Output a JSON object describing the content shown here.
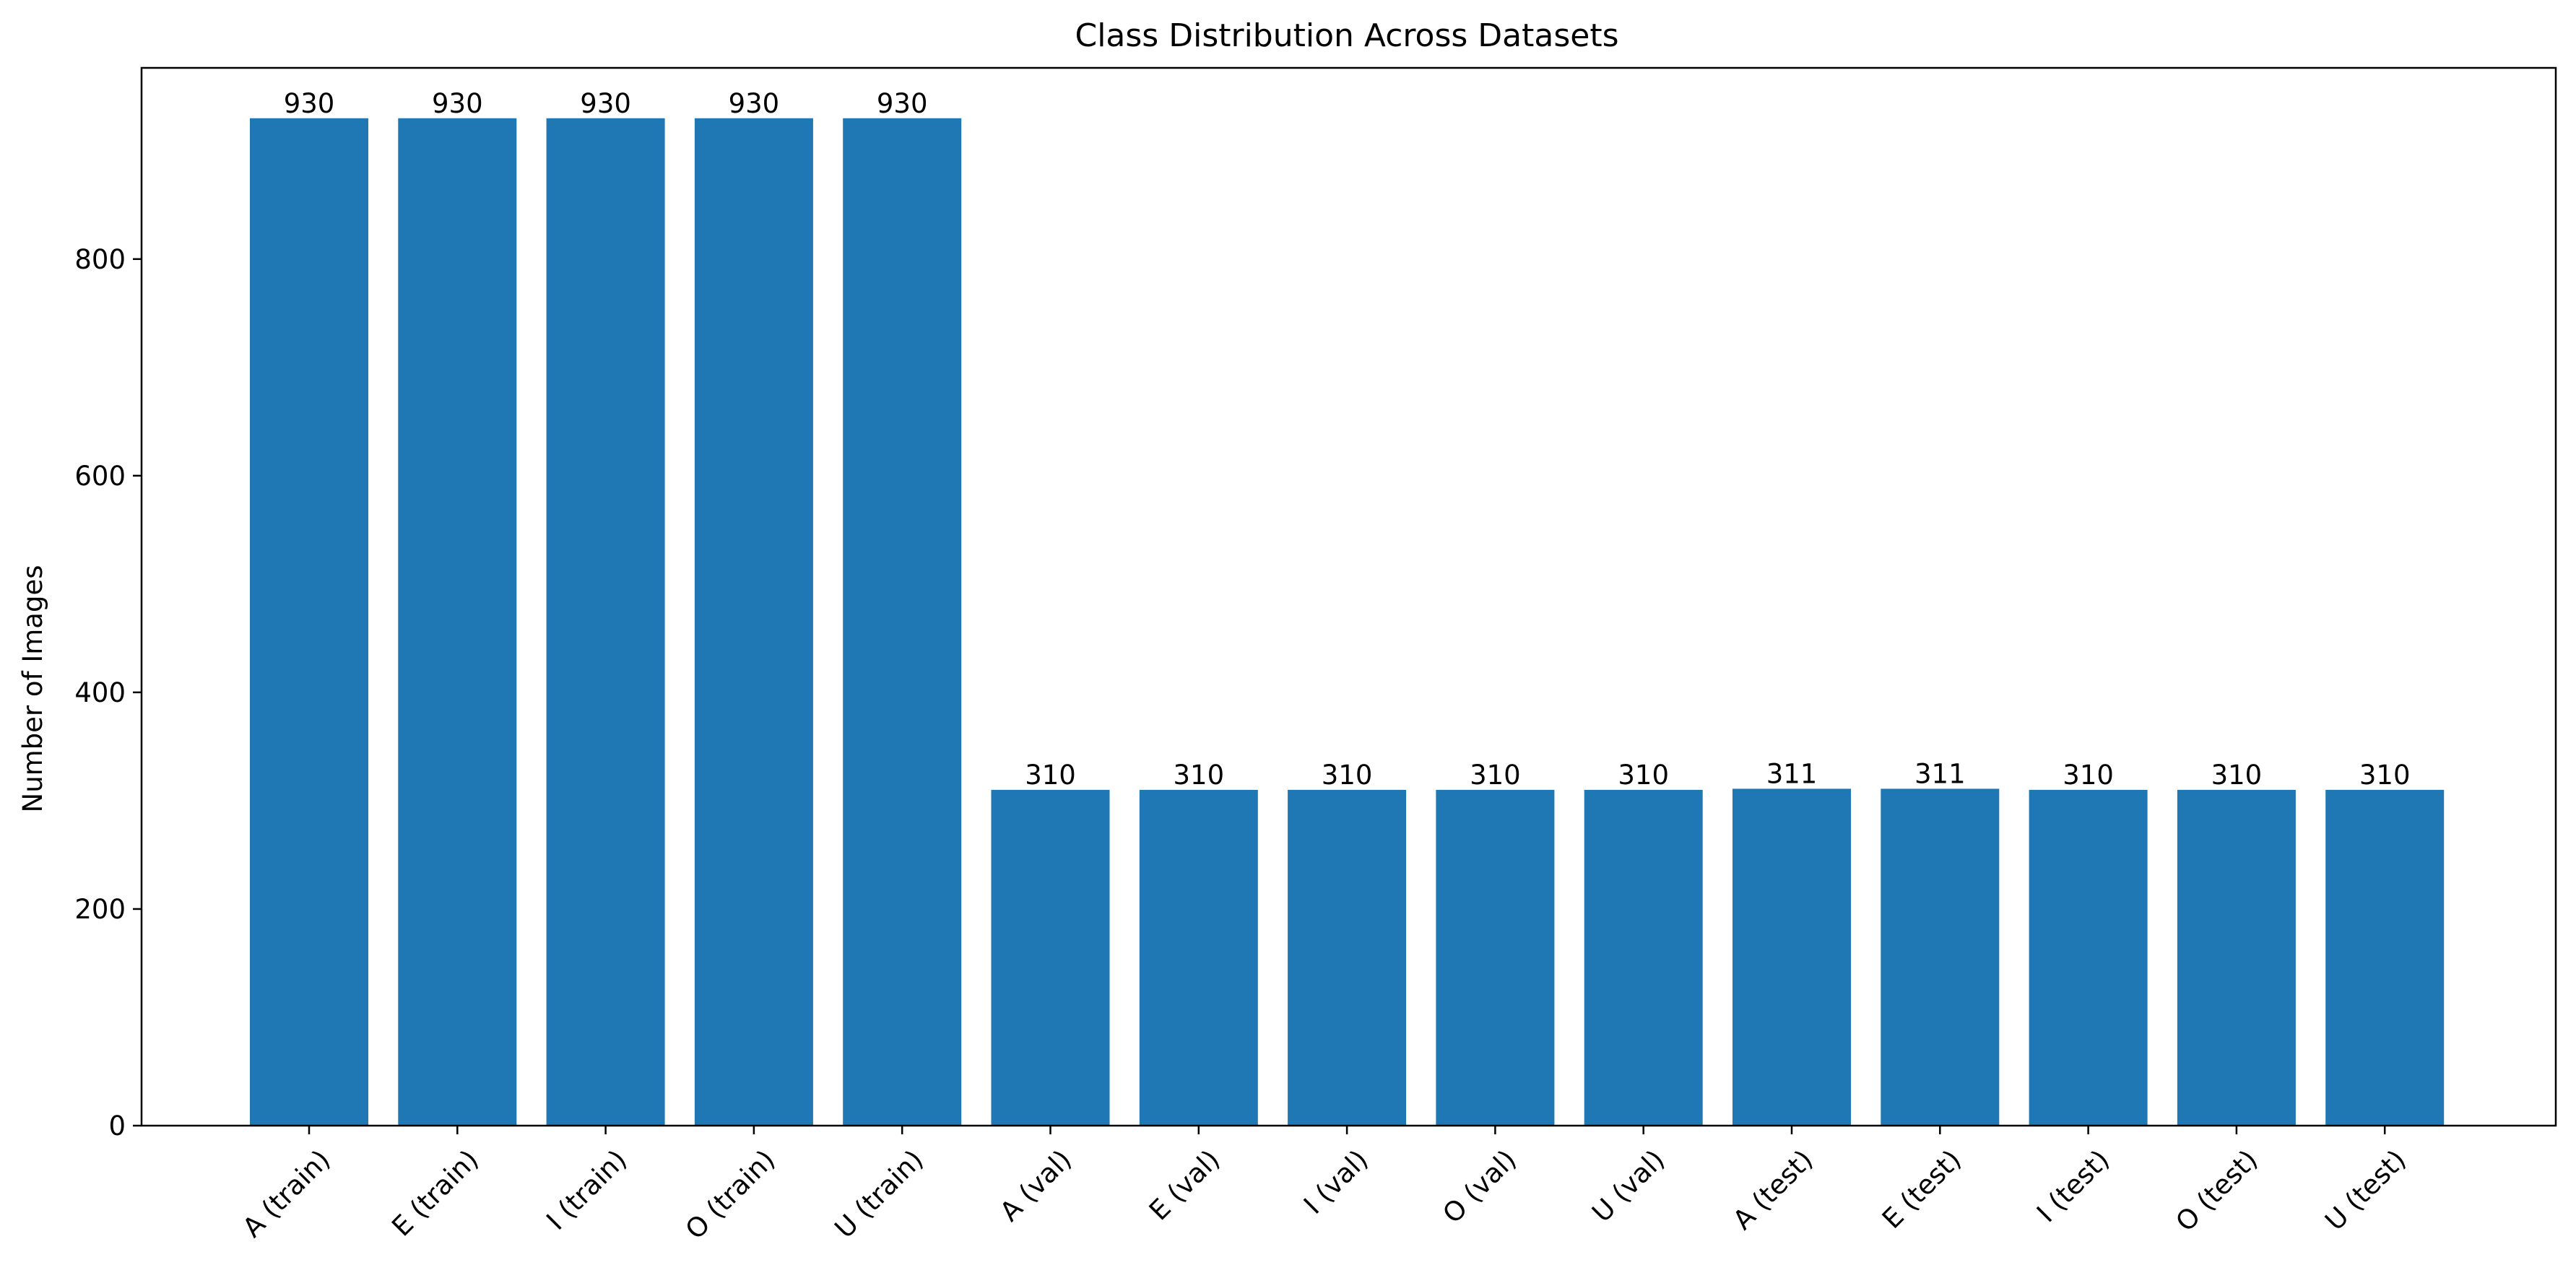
{
  "chart_data": {
    "type": "bar",
    "title": "Class Distribution Across Datasets",
    "xlabel": "",
    "ylabel": "Number of Images",
    "categories": [
      "A (train)",
      "E (train)",
      "I (train)",
      "O (train)",
      "U (train)",
      "A (val)",
      "E (val)",
      "I (val)",
      "O (val)",
      "U (val)",
      "A (test)",
      "E (test)",
      "I (test)",
      "O (test)",
      "U (test)"
    ],
    "values": [
      930,
      930,
      930,
      930,
      930,
      310,
      310,
      310,
      310,
      310,
      311,
      311,
      310,
      310,
      310
    ],
    "data_labels": [
      "930",
      "930",
      "930",
      "930",
      "930",
      "310",
      "310",
      "310",
      "310",
      "310",
      "311",
      "311",
      "310",
      "310",
      "310"
    ],
    "yticks": [
      0,
      200,
      400,
      600,
      800
    ],
    "ylim": [
      0,
      976.5
    ],
    "bar_color": "#1f77b4",
    "grid": false,
    "legend": "none"
  }
}
